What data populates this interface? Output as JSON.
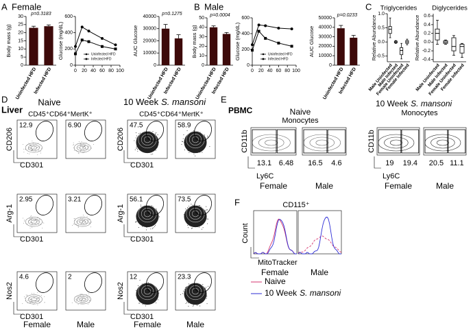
{
  "labels": {
    "A": "A",
    "B": "B",
    "C": "C",
    "D": "D",
    "E": "E",
    "F": "F"
  },
  "panel_a": {
    "title": "Female"
  },
  "panel_b": {
    "title": "Male"
  },
  "chart_data": [
    {
      "type": "bar",
      "annotation": "p=0.3183",
      "y_label": "Body mass (g)",
      "categories": [
        "Uninfected HFD",
        "Infected HFD"
      ],
      "values": [
        23,
        24
      ],
      "errors": [
        1,
        0.8
      ],
      "color": "#3d0a0a",
      "ylim": [
        0,
        30
      ],
      "yticks": [
        0,
        5,
        10,
        15,
        20,
        25,
        30
      ]
    },
    {
      "type": "line",
      "y_label": "Glucose (mg/dL)",
      "x": [
        0,
        15,
        30,
        60,
        90
      ],
      "xlim": [
        0,
        100
      ],
      "xticks": [
        0,
        20,
        40,
        60,
        80,
        100
      ],
      "ylim": [
        0,
        600
      ],
      "yticks": [
        0,
        200,
        400,
        600
      ],
      "legend": "lower center",
      "series": [
        {
          "name": "Uninfected HFD",
          "color": "#000000",
          "marker": "circle",
          "values": [
            230,
            470,
            420,
            330,
            250
          ]
        },
        {
          "name": "Infected HFD",
          "color": "#000000",
          "marker": "square",
          "values": [
            140,
            310,
            290,
            230,
            200
          ]
        }
      ]
    },
    {
      "type": "bar",
      "annotation": "p=0.1275",
      "y_label": "AUC Glucose",
      "categories": [
        "Uninfected HFD",
        "Infected HFD"
      ],
      "values": [
        30000,
        22000
      ],
      "errors": [
        3500,
        3000
      ],
      "color": "#3d0a0a",
      "ylim": [
        0,
        40000
      ],
      "yticks": [
        0,
        10000,
        20000,
        30000,
        40000
      ]
    },
    {
      "type": "bar",
      "annotation": "p=0.0004",
      "y_label": "Body mass (g)",
      "categories": [
        "Uninfected HFD",
        "Infected HFD"
      ],
      "values": [
        40,
        33
      ],
      "errors": [
        1.5,
        1.5
      ],
      "color": "#3d0a0a",
      "ylim": [
        0,
        50
      ],
      "yticks": [
        0,
        10,
        20,
        30,
        40,
        50
      ]
    },
    {
      "type": "line",
      "y_label": "Glucose (mg/dL)",
      "x": [
        0,
        15,
        30,
        60,
        90
      ],
      "xlim": [
        0,
        100
      ],
      "xticks": [
        0,
        20,
        40,
        60,
        80,
        100
      ],
      "ylim": [
        0,
        600
      ],
      "yticks": [
        0,
        200,
        400,
        600
      ],
      "legend": "lower center",
      "series": [
        {
          "name": "Uninfected HFD",
          "color": "#000000",
          "marker": "circle",
          "values": [
            260,
            510,
            500,
            470,
            460
          ]
        },
        {
          "name": "Infected HFD",
          "color": "#000000",
          "marker": "square",
          "values": [
            190,
            430,
            340,
            280,
            240
          ]
        }
      ]
    },
    {
      "type": "bar",
      "annotation": "p=0.0233",
      "y_label": "AUC Glucose",
      "categories": [
        "Uninfected HFD",
        "Infected HFD"
      ],
      "values": [
        39000,
        29000
      ],
      "errors": [
        3000,
        2500
      ],
      "color": "#3d0a0a",
      "ylim": [
        0,
        50000
      ],
      "yticks": [
        0,
        10000,
        20000,
        30000,
        40000,
        50000
      ]
    },
    {
      "type": "box",
      "title": "Triglycerides",
      "y_label": "Relative Abundance",
      "categories": [
        "Male Uninfected",
        "Male Infected",
        "Female Uninfected",
        "Female Infected"
      ],
      "color": "#000000",
      "ylim": [
        -0.7,
        1.0
      ],
      "yticks": [
        -0.5,
        {
          "value": 0,
          "label": "0.0"
        },
        0.5,
        {
          "value": 1,
          "label": "1.0"
        }
      ],
      "boxes": [
        {
          "min": 0.15,
          "q1": 0.3,
          "median": 0.45,
          "q3": 0.55,
          "max": 0.85
        },
        {
          "min": -0.05,
          "q1": -0.03,
          "median": 0,
          "q3": 0.03,
          "max": 0.05
        },
        {
          "min": -0.6,
          "q1": -0.45,
          "median": -0.3,
          "q3": -0.2,
          "max": -0.05
        },
        {
          "min": -0.1,
          "q1": -0.05,
          "median": 0,
          "q3": 0.05,
          "max": 0.1
        }
      ]
    },
    {
      "type": "box",
      "title": "Diglycerides",
      "y_label": "Relative Abundance",
      "categories": [
        "Male Uninfected",
        "Male Infected",
        "Female Uninfected",
        "Female Infected"
      ],
      "color": "#000000",
      "ylim": [
        -0.45,
        0.65
      ],
      "yticks": [
        -0.4,
        -0.2,
        {
          "value": 0,
          "label": "0.0"
        },
        0.2,
        0.4,
        0.6
      ],
      "boxes": [
        {
          "min": -0.05,
          "q1": 0.05,
          "median": 0.2,
          "q3": 0.3,
          "max": 0.5
        },
        {
          "min": -0.05,
          "q1": -0.03,
          "median": 0,
          "q3": 0.03,
          "max": 0.05
        },
        {
          "min": -0.3,
          "q1": -0.2,
          "median": -0.1,
          "q3": 0.1,
          "max": 0.15
        },
        {
          "min": -0.35,
          "q1": -0.25,
          "median": -0.1,
          "q3": -0.05,
          "max": -0.03
        }
      ]
    }
  ],
  "panel_d": {
    "tissue": "Liver",
    "naive": "Naive",
    "infected": {
      "prefix": "10 Week",
      "species": "S. mansoni"
    },
    "population": "CD45⁺CD64⁺MertK⁺",
    "rows": [
      {
        "y_label": "CD206",
        "x_label": "CD301",
        "gates": [
          "12.9",
          "6.90",
          "47.5",
          "58.9"
        ]
      },
      {
        "y_label": "Arg-1",
        "x_label": "CD301",
        "gates": [
          "2.95",
          "3.21",
          "56.1",
          "73.5"
        ]
      },
      {
        "y_label": "Nos2",
        "x_label": "CD301",
        "gates": [
          "4.6",
          "2",
          "12",
          "23.3"
        ]
      }
    ],
    "columns": [
      "Female",
      "Male"
    ]
  },
  "panel_e": {
    "tissue": "PBMC",
    "naive": "Naive",
    "infected": {
      "prefix": "10 Week",
      "species": "S. mansoni"
    },
    "population": "Monocytes",
    "y_label": "CD11b",
    "x_label": "Ly6C",
    "gates": [
      [
        "13.1",
        "6.48"
      ],
      [
        "16.5",
        "4.6"
      ],
      [
        "19",
        "19.4"
      ],
      [
        "20.5",
        "11.1"
      ]
    ],
    "columns": [
      "Female",
      "Male"
    ]
  },
  "panel_f": {
    "population": "CD115⁺",
    "y_label": "Count",
    "x_label": "MitoTracker",
    "columns": [
      "Female",
      "Male"
    ],
    "legend": {
      "naive": {
        "label": "Naive",
        "color": "#d6336c"
      },
      "infected": {
        "prefix": "10 Week",
        "species": "S. mansoni",
        "color": "#2b2bd6"
      }
    }
  }
}
